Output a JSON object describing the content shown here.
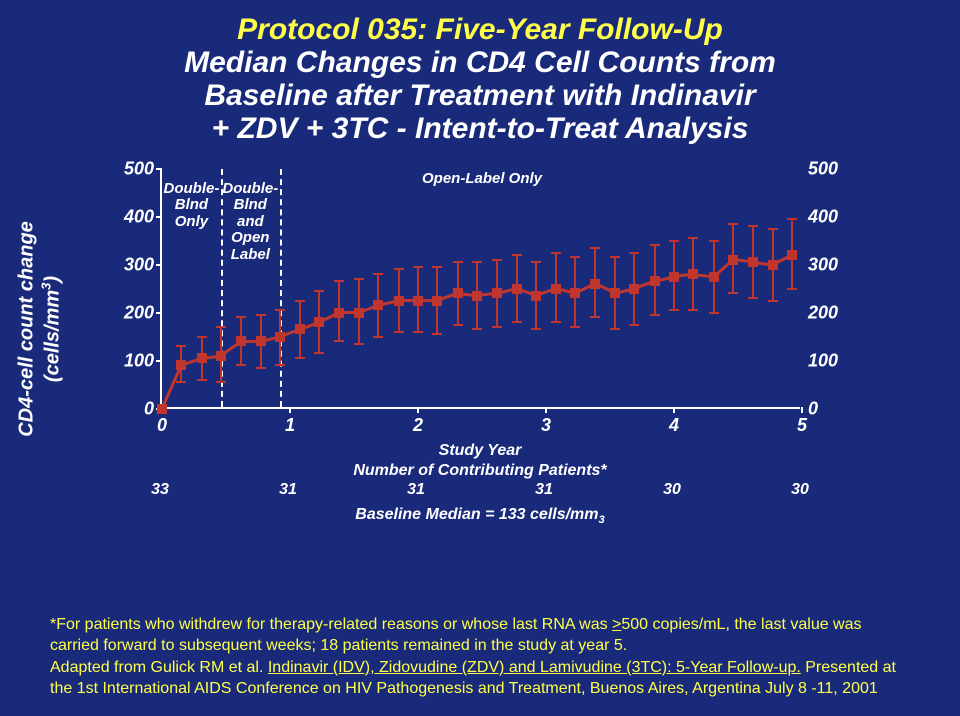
{
  "title": {
    "line1": "Protocol 035: Five-Year Follow-Up",
    "line2": "Median Changes in CD4 Cell Counts from",
    "line3": "Baseline after Treatment with Indinavir",
    "line4": "+ ZDV + 3TC - Intent-to-Treat Analysis"
  },
  "chart": {
    "type": "line-with-error-bars",
    "ylabel_line1": "CD4-cell count change",
    "ylabel_line2_prefix": "(cells/mm",
    "ylabel_line2_sup": "3",
    "ylabel_line2_suffix": ")",
    "xlabel": "Study Year",
    "contrib_label": "Number of Contributing Patients*",
    "baseline_prefix": "Baseline Median = 133 cells/mm",
    "baseline_sub": "3",
    "ylim": [
      0,
      500
    ],
    "ytick_step": 100,
    "xlim": [
      0,
      5
    ],
    "xtick_step": 1,
    "line_color": "#c0352c",
    "marker_color": "#c0352c",
    "marker_size": 10,
    "background_color": "#1a2a7a",
    "axis_color": "#ffffff",
    "dash_positions_year": [
      0.46,
      0.92
    ],
    "phase_labels": [
      {
        "text_lines": [
          "Double-",
          "Blnd",
          "Only"
        ],
        "x_year": 0.23,
        "y_val": 475
      },
      {
        "text_lines": [
          "Double-",
          "Blnd",
          "and",
          "Open",
          "Label"
        ],
        "x_year": 0.69,
        "y_val": 475
      },
      {
        "text_lines": [
          "Open-Label Only"
        ],
        "x_year": 2.5,
        "y_val": 495
      }
    ],
    "points": [
      {
        "x": 0.0,
        "y": 0
      },
      {
        "x": 0.15,
        "y": 90,
        "lo": 55,
        "hi": 130
      },
      {
        "x": 0.31,
        "y": 105,
        "lo": 60,
        "hi": 150
      },
      {
        "x": 0.46,
        "y": 110,
        "lo": 55,
        "hi": 170
      },
      {
        "x": 0.62,
        "y": 140,
        "lo": 90,
        "hi": 190
      },
      {
        "x": 0.77,
        "y": 140,
        "lo": 85,
        "hi": 195
      },
      {
        "x": 0.92,
        "y": 150,
        "lo": 90,
        "hi": 205
      },
      {
        "x": 1.08,
        "y": 165,
        "lo": 105,
        "hi": 225
      },
      {
        "x": 1.23,
        "y": 180,
        "lo": 115,
        "hi": 245
      },
      {
        "x": 1.38,
        "y": 200,
        "lo": 140,
        "hi": 265
      },
      {
        "x": 1.54,
        "y": 200,
        "lo": 135,
        "hi": 270
      },
      {
        "x": 1.69,
        "y": 215,
        "lo": 150,
        "hi": 280
      },
      {
        "x": 1.85,
        "y": 225,
        "lo": 160,
        "hi": 290
      },
      {
        "x": 2.0,
        "y": 225,
        "lo": 160,
        "hi": 295
      },
      {
        "x": 2.15,
        "y": 225,
        "lo": 155,
        "hi": 295
      },
      {
        "x": 2.31,
        "y": 240,
        "lo": 175,
        "hi": 305
      },
      {
        "x": 2.46,
        "y": 235,
        "lo": 165,
        "hi": 305
      },
      {
        "x": 2.62,
        "y": 240,
        "lo": 170,
        "hi": 310
      },
      {
        "x": 2.77,
        "y": 250,
        "lo": 180,
        "hi": 320
      },
      {
        "x": 2.92,
        "y": 235,
        "lo": 165,
        "hi": 305
      },
      {
        "x": 3.08,
        "y": 250,
        "lo": 180,
        "hi": 325
      },
      {
        "x": 3.23,
        "y": 240,
        "lo": 170,
        "hi": 315
      },
      {
        "x": 3.38,
        "y": 260,
        "lo": 190,
        "hi": 335
      },
      {
        "x": 3.54,
        "y": 240,
        "lo": 165,
        "hi": 315
      },
      {
        "x": 3.69,
        "y": 250,
        "lo": 175,
        "hi": 325
      },
      {
        "x": 3.85,
        "y": 265,
        "lo": 195,
        "hi": 340
      },
      {
        "x": 4.0,
        "y": 275,
        "lo": 205,
        "hi": 350
      },
      {
        "x": 4.15,
        "y": 280,
        "lo": 205,
        "hi": 355
      },
      {
        "x": 4.31,
        "y": 275,
        "lo": 200,
        "hi": 350
      },
      {
        "x": 4.46,
        "y": 310,
        "lo": 240,
        "hi": 385
      },
      {
        "x": 4.62,
        "y": 305,
        "lo": 230,
        "hi": 380
      },
      {
        "x": 4.77,
        "y": 300,
        "lo": 225,
        "hi": 375
      },
      {
        "x": 4.92,
        "y": 320,
        "lo": 250,
        "hi": 395
      }
    ],
    "contrib_ns": [
      {
        "x": 0,
        "n": "33"
      },
      {
        "x": 1,
        "n": "31"
      },
      {
        "x": 2,
        "n": "31"
      },
      {
        "x": 3,
        "n": "31"
      },
      {
        "x": 4,
        "n": "30"
      },
      {
        "x": 5,
        "n": "30"
      }
    ]
  },
  "footnote": {
    "line1": "*For patients who withdrew for therapy-related reasons or whose last RNA was ",
    "ul1": ">",
    "line1b": "500 copies/mL, the last value was carried forward to subsequent weeks; 18 patients remained in the study at year 5.",
    "line2a": "Adapted from Gulick RM et al. ",
    "line2u": "Indinavir (IDV), Zidovudine (ZDV) and Lamivudine (3TC): 5-Year Follow-up.",
    "line2b": " Presented at the 1st International AIDS Conference on HIV Pathogenesis and Treatment, Buenos Aires, Argentina July 8 -11, 2001"
  }
}
